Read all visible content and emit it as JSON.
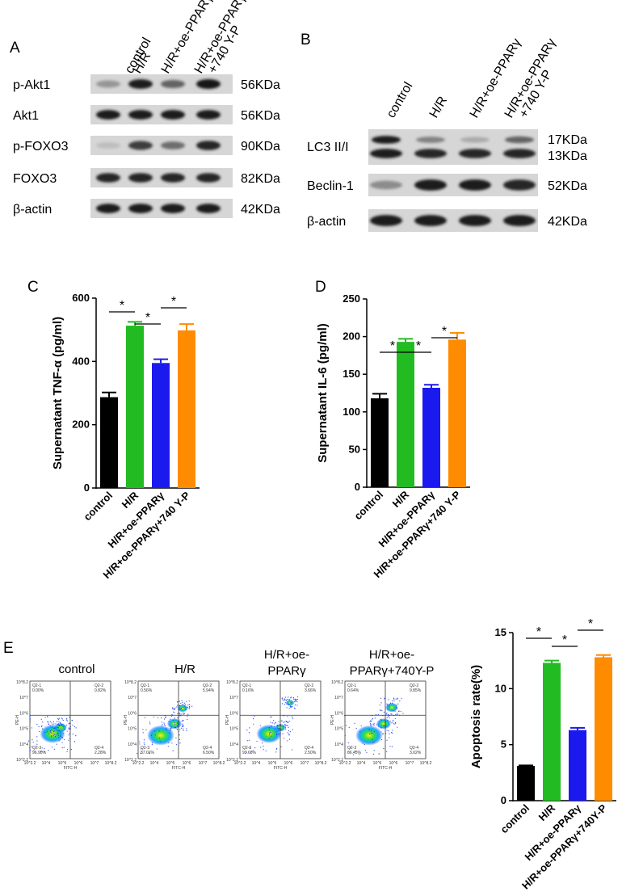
{
  "panel_labels": [
    "A",
    "B",
    "C",
    "D",
    "E"
  ],
  "blot_a": {
    "lanes": [
      "control",
      "H/R",
      "H/R+oe-PPARγ",
      "H/R+oe-PPARγ",
      "+740 Y-P"
    ],
    "rows": [
      {
        "label": "p-Akt1",
        "size": "56KDa",
        "intensity": [
          0.35,
          0.95,
          0.6,
          1.0
        ]
      },
      {
        "label": "Akt1",
        "size": "56KDa",
        "intensity": [
          0.95,
          0.95,
          0.95,
          0.95
        ]
      },
      {
        "label": "p-FOXO3",
        "size": "90KDa",
        "intensity": [
          0.15,
          0.8,
          0.55,
          0.9
        ]
      },
      {
        "label": "FOXO3",
        "size": "82KDa",
        "intensity": [
          0.9,
          0.9,
          0.9,
          0.9
        ]
      },
      {
        "label": "β-actin",
        "size": "42KDa",
        "intensity": [
          0.95,
          0.95,
          0.95,
          0.95
        ]
      }
    ]
  },
  "blot_b": {
    "lanes": [
      "control",
      "H/R",
      "H/R+oe-PPARγ",
      "H/R+oe-PPARγ",
      "+740 Y-P"
    ],
    "lc3_label": "LC3 II/I",
    "lc3_sizes": [
      "17KDa",
      "13KDa"
    ],
    "lc3_upper": [
      0.95,
      0.45,
      0.25,
      0.6
    ],
    "lc3_lower": [
      0.95,
      0.9,
      0.9,
      0.9
    ],
    "rows": [
      {
        "label": "Beclin-1",
        "size": "52KDa",
        "intensity": [
          0.4,
          0.95,
          0.95,
          0.9
        ]
      },
      {
        "label": "β-actin",
        "size": "42KDa",
        "intensity": [
          0.95,
          0.95,
          0.95,
          0.95
        ]
      }
    ]
  },
  "flow": {
    "panels": [
      {
        "title": [
          "control"
        ],
        "q1": "0.00%",
        "q2": "0.82%",
        "q3": "96.90%",
        "q4": "2.28%"
      },
      {
        "title": [
          "H/R"
        ],
        "q1": "0.56%",
        "q2": "5.94%",
        "q3": "87.01%",
        "q4": "6.50%"
      },
      {
        "title": [
          "H/R+oe-",
          "PPARγ"
        ],
        "q1": "0.16%",
        "q2": "3.66%",
        "q3": "93.68%",
        "q4": "2.50%"
      },
      {
        "title": [
          "H/R+oe-",
          "PPARγ+740Y-P"
        ],
        "q1": "0.64%",
        "q2": "9.85%",
        "q3": "86.45%",
        "q4": "3.02%"
      }
    ],
    "quad_names": [
      "Q2-1",
      "Q2-2",
      "Q2-3",
      "Q2-4"
    ],
    "x_axis_label": "FITC-H",
    "y_axis_label": "PE-H",
    "x_ticks": [
      "10^2.2",
      "10^4",
      "10^5",
      "10^6",
      "10^7",
      "10^8.2"
    ],
    "y_ticks": [
      "10^8.2",
      "10^7",
      "10^6",
      "10^5",
      "10^4",
      "10^2.2"
    ]
  },
  "chart_data": [
    {
      "type": "bar",
      "categories": [
        "control",
        "H/R",
        "H/R+oe-PPARγ",
        "H/R+oe-PPARγ+740 Y-P"
      ],
      "values": [
        287,
        513,
        395,
        498
      ],
      "errors": [
        15,
        12,
        12,
        20
      ],
      "colors": [
        "#000000",
        "#22bb22",
        "#1a1aee",
        "#ff8c00"
      ],
      "xlabel": "",
      "ylabel": "Supernatant TNF-α (pg/ml)",
      "ylim": [
        0,
        600
      ],
      "yticks": [
        "0",
        "200",
        "400",
        "600"
      ],
      "yticks_values": [
        0,
        200,
        400,
        600
      ],
      "significance": [
        {
          "from": 0,
          "to": 1,
          "label": "*"
        },
        {
          "from": 1,
          "to": 2,
          "label": "*"
        },
        {
          "from": 2,
          "to": 3,
          "label": "*"
        }
      ]
    },
    {
      "type": "bar",
      "categories": [
        "control",
        "H/R",
        "H/R+oe-PPARγ",
        "H/R+oe-PPARγ+740 Y-P"
      ],
      "values": [
        118,
        193,
        132,
        196
      ],
      "errors": [
        6,
        4,
        4,
        9
      ],
      "colors": [
        "#000000",
        "#22bb22",
        "#1a1aee",
        "#ff8c00"
      ],
      "xlabel": "",
      "ylabel": "Supernatant IL-6 (pg/ml)",
      "ylim": [
        0,
        250
      ],
      "yticks": [
        "0",
        "50",
        "100",
        "150",
        "200",
        "250"
      ],
      "yticks_values": [
        0,
        50,
        100,
        150,
        200,
        250
      ],
      "significance": [
        {
          "from": 0,
          "to": 1,
          "label": "*"
        },
        {
          "from": 1,
          "to": 2,
          "label": "*"
        },
        {
          "from": 2,
          "to": 3,
          "label": "*"
        }
      ]
    },
    {
      "type": "bar",
      "categories": [
        "control",
        "H/R",
        "H/R+oe-PPARγ",
        "H/R+oe-PPARγ+740Y-P"
      ],
      "values": [
        3.1,
        12.3,
        6.3,
        12.8
      ],
      "errors": [
        0.05,
        0.2,
        0.2,
        0.2
      ],
      "colors": [
        "#000000",
        "#22bb22",
        "#1a1aee",
        "#ff8c00"
      ],
      "xlabel": "",
      "ylabel": "Apoptosis rate(%)",
      "ylim": [
        0,
        15
      ],
      "yticks": [
        "0",
        "5",
        "10",
        "15"
      ],
      "yticks_values": [
        0,
        5,
        10,
        15
      ],
      "significance": [
        {
          "from": 0,
          "to": 1,
          "label": "*"
        },
        {
          "from": 1,
          "to": 2,
          "label": "*"
        },
        {
          "from": 2,
          "to": 3,
          "label": "*"
        }
      ]
    }
  ]
}
